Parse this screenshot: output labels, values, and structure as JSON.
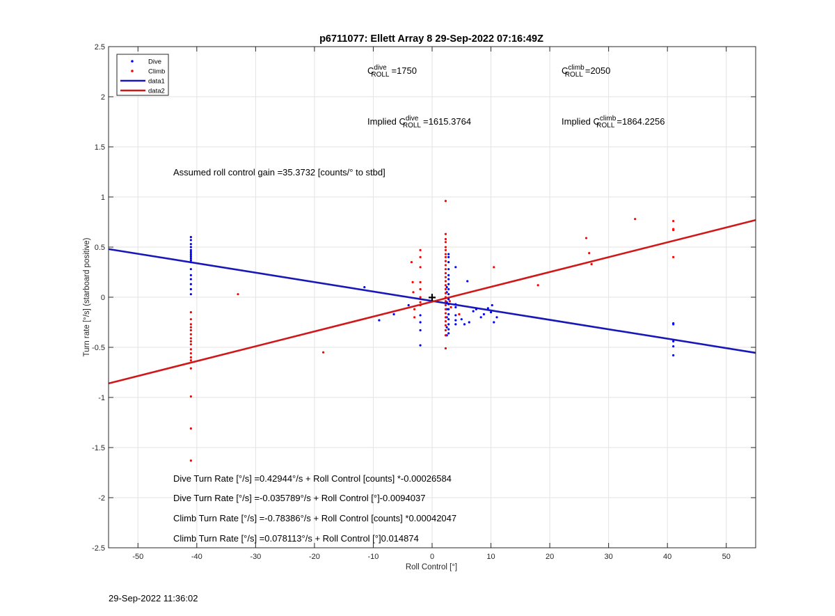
{
  "chart_data": {
    "type": "scatter",
    "title": "p6711077: Ellett Array 8 29-Sep-2022 07:16:49Z",
    "xlabel": "Roll Control [°]",
    "ylabel": "Turn rate [°/s] (starboard positive)",
    "xlim": [
      -55,
      55
    ],
    "ylim": [
      -2.5,
      2.5
    ],
    "x_ticks": [
      -50,
      -40,
      -30,
      -20,
      -10,
      0,
      10,
      20,
      30,
      40,
      50
    ],
    "x_tick_labels": [
      "-50",
      "-40",
      "-30",
      "-20",
      "-10",
      "0",
      "10",
      "20",
      "30",
      "40",
      "50"
    ],
    "y_ticks": [
      2.5,
      2,
      1.5,
      1,
      0.5,
      0,
      -0.5,
      -1,
      -1.5,
      -2,
      -2.5
    ],
    "y_tick_labels": [
      "2.5",
      "2",
      "1.5",
      "1",
      "0.5",
      "0",
      "-0.5",
      "-1",
      "-1.5",
      "-2",
      "-2.5"
    ],
    "grid": true,
    "legend_position": "top-left",
    "legend": [
      {
        "label": "Dive",
        "kind": "marker",
        "color": "#0000ff"
      },
      {
        "label": "Climb",
        "kind": "marker",
        "color": "#ff0000"
      },
      {
        "label": "data1",
        "kind": "line",
        "color": "#1818b8"
      },
      {
        "label": "data2",
        "kind": "line",
        "color": "#d01818"
      }
    ],
    "series": [
      {
        "name": "Dive",
        "color": "#0000ff",
        "points": [
          [
            -41,
            0.6
          ],
          [
            -41,
            0.57
          ],
          [
            -41,
            0.53
          ],
          [
            -41,
            0.5
          ],
          [
            -41,
            0.47
          ],
          [
            -41,
            0.45
          ],
          [
            -41,
            0.43
          ],
          [
            -41,
            0.41
          ],
          [
            -41,
            0.39
          ],
          [
            -41,
            0.37
          ],
          [
            -41,
            0.35
          ],
          [
            -41,
            0.28
          ],
          [
            -41,
            0.22
          ],
          [
            -41,
            0.18
          ],
          [
            -41,
            0.13
          ],
          [
            -41,
            0.08
          ],
          [
            -41,
            0.03
          ],
          [
            -11.5,
            0.1
          ],
          [
            -9,
            -0.23
          ],
          [
            -6.5,
            -0.17
          ],
          [
            -4,
            -0.08
          ],
          [
            -2,
            -0.18
          ],
          [
            -2,
            -0.25
          ],
          [
            -2,
            -0.33
          ],
          [
            -2,
            -0.48
          ],
          [
            2.5,
            0.1
          ],
          [
            2.5,
            0.05
          ],
          [
            2.5,
            -0.05
          ],
          [
            2.5,
            -0.12
          ],
          [
            2.5,
            -0.2
          ],
          [
            2.5,
            -0.3
          ],
          [
            2.5,
            -0.38
          ],
          [
            2.8,
            0.43
          ],
          [
            2.8,
            0.4
          ],
          [
            2.8,
            0.35
          ],
          [
            2.8,
            0.28
          ],
          [
            2.8,
            0.22
          ],
          [
            2.8,
            0.18
          ],
          [
            2.8,
            0.13
          ],
          [
            2.8,
            0.08
          ],
          [
            2.8,
            0.03
          ],
          [
            2.8,
            -0.02
          ],
          [
            2.8,
            -0.07
          ],
          [
            2.8,
            -0.12
          ],
          [
            2.8,
            -0.17
          ],
          [
            2.8,
            -0.22
          ],
          [
            2.8,
            -0.27
          ],
          [
            2.8,
            -0.32
          ],
          [
            2.8,
            -0.36
          ],
          [
            4,
            0.3
          ],
          [
            4,
            -0.07
          ],
          [
            4,
            -0.1
          ],
          [
            4,
            -0.18
          ],
          [
            4,
            -0.23
          ],
          [
            4,
            -0.27
          ],
          [
            5,
            -0.22
          ],
          [
            5.5,
            -0.27
          ],
          [
            6,
            0.16
          ],
          [
            6.3,
            -0.25
          ],
          [
            7,
            -0.14
          ],
          [
            7.5,
            -0.12
          ],
          [
            8.3,
            -0.2
          ],
          [
            8.8,
            -0.17
          ],
          [
            9.5,
            -0.11
          ],
          [
            10,
            -0.15
          ],
          [
            10.2,
            -0.08
          ],
          [
            10.5,
            -0.25
          ],
          [
            11,
            -0.2
          ],
          [
            41,
            -0.26
          ],
          [
            41,
            -0.27
          ],
          [
            41,
            -0.44
          ],
          [
            41,
            -0.49
          ],
          [
            41,
            -0.58
          ]
        ]
      },
      {
        "name": "Climb",
        "color": "#ff0000",
        "points": [
          [
            -41,
            -0.15
          ],
          [
            -41,
            -0.22
          ],
          [
            -41,
            -0.27
          ],
          [
            -41,
            -0.3
          ],
          [
            -41,
            -0.33
          ],
          [
            -41,
            -0.37
          ],
          [
            -41,
            -0.41
          ],
          [
            -41,
            -0.44
          ],
          [
            -41,
            -0.47
          ],
          [
            -41,
            -0.52
          ],
          [
            -41,
            -0.56
          ],
          [
            -41,
            -0.6
          ],
          [
            -41,
            -0.63
          ],
          [
            -41,
            -0.71
          ],
          [
            -41,
            -0.99
          ],
          [
            -41,
            -1.31
          ],
          [
            -41,
            -1.63
          ],
          [
            -33,
            0.03
          ],
          [
            -18.5,
            -0.55
          ],
          [
            -3.5,
            0.35
          ],
          [
            -3.3,
            0.15
          ],
          [
            -3.2,
            0.05
          ],
          [
            -3,
            -0.12
          ],
          [
            -3,
            -0.2
          ],
          [
            -2,
            0.47
          ],
          [
            -2,
            0.4
          ],
          [
            -2,
            0.3
          ],
          [
            -2,
            0.15
          ],
          [
            -2,
            0.08
          ],
          [
            -2,
            0.0
          ],
          [
            -2,
            -0.05
          ],
          [
            -2,
            -0.08
          ],
          [
            2.3,
            0.96
          ],
          [
            2.3,
            0.63
          ],
          [
            2.3,
            0.58
          ],
          [
            2.3,
            0.55
          ],
          [
            2.3,
            0.5
          ],
          [
            2.3,
            0.47
          ],
          [
            2.3,
            0.43
          ],
          [
            2.3,
            0.4
          ],
          [
            2.3,
            0.36
          ],
          [
            2.3,
            0.32
          ],
          [
            2.3,
            0.28
          ],
          [
            2.3,
            0.24
          ],
          [
            2.3,
            0.2
          ],
          [
            2.3,
            0.16
          ],
          [
            2.3,
            0.12
          ],
          [
            2.3,
            0.08
          ],
          [
            2.3,
            0.04
          ],
          [
            2.3,
            0.0
          ],
          [
            2.3,
            -0.04
          ],
          [
            2.3,
            -0.08
          ],
          [
            2.3,
            -0.12
          ],
          [
            2.3,
            -0.16
          ],
          [
            2.3,
            -0.2
          ],
          [
            2.3,
            -0.24
          ],
          [
            2.3,
            -0.28
          ],
          [
            2.3,
            -0.33
          ],
          [
            2.3,
            -0.38
          ],
          [
            2.3,
            -0.51
          ],
          [
            3,
            -0.04
          ],
          [
            3.2,
            -0.1
          ],
          [
            4.6,
            -0.17
          ],
          [
            10.5,
            0.3
          ],
          [
            18,
            0.12
          ],
          [
            26.2,
            0.59
          ],
          [
            26.7,
            0.44
          ],
          [
            27.1,
            0.33
          ],
          [
            34.5,
            0.78
          ],
          [
            41,
            0.76
          ],
          [
            41,
            0.68
          ],
          [
            41,
            0.67
          ],
          [
            41,
            0.4
          ]
        ]
      }
    ],
    "fit_lines": [
      {
        "name": "data1",
        "color": "#1818b8",
        "x": [
          -55,
          55
        ],
        "y": [
          0.48,
          -0.555
        ]
      },
      {
        "name": "data2",
        "color": "#d01818",
        "x": [
          -55,
          55
        ],
        "y": [
          -0.86,
          0.77
        ]
      }
    ],
    "marker": {
      "symbol": "+",
      "x": 0,
      "y": 0
    },
    "annotations": {
      "c_dive": "=1750",
      "c_climb": "=2050",
      "implied_c_dive": "=1615.3764",
      "implied_c_climb": "=1864.2256",
      "c_symbol": "C",
      "roll_subscript": "ROLL",
      "dive_superscript": "dive",
      "climb_superscript": "climb",
      "implied_prefix": "Implied ",
      "gain_note": "Assumed roll control gain =35.3732 [counts/° to stbd]",
      "equations": [
        "Dive Turn Rate [°/s] =0.42944°/s + Roll Control [counts] *-0.00026584",
        "Dive Turn Rate [°/s] =-0.035789°/s + Roll Control [°]-0.0094037",
        "Climb Turn Rate [°/s] =-0.78386°/s + Roll Control [counts] *0.00042047",
        "Climb Turn Rate [°/s] =0.078113°/s + Roll Control [°]0.014874"
      ]
    }
  },
  "footer": {
    "timestamp": "29-Sep-2022 11:36:02"
  }
}
